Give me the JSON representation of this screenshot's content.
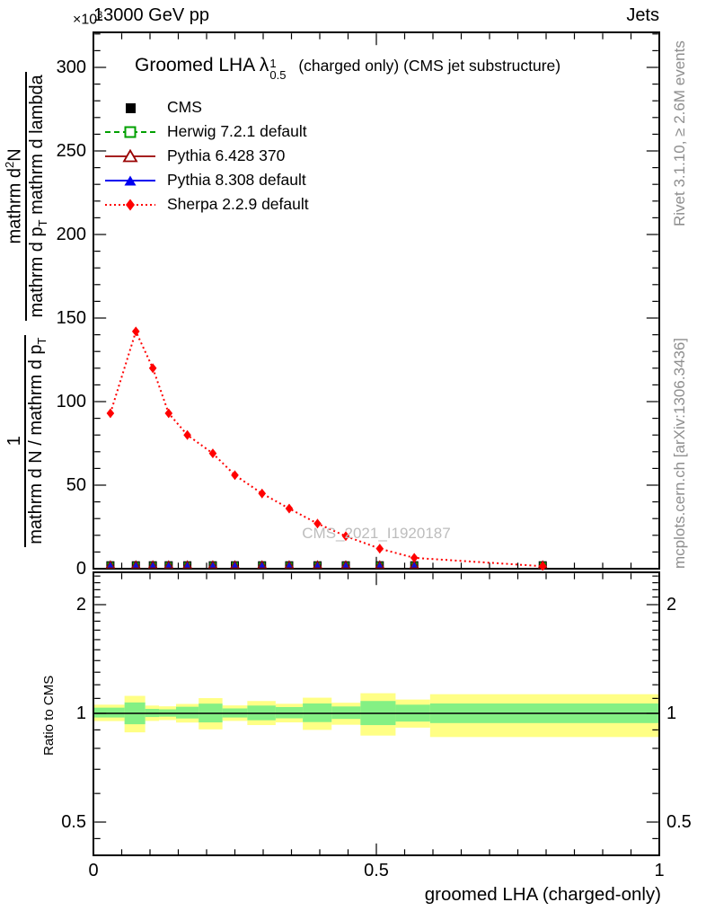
{
  "header": {
    "left": "13000 GeV pp",
    "right": "Jets",
    "scale_prefix": "×10",
    "scale_exp": "3"
  },
  "title": {
    "main": "Groomed LHA",
    "lambda": "λ",
    "sup": "1",
    "sub": "0.5",
    "suffix": "(charged only) (CMS jet substructure)"
  },
  "legend": {
    "items": [
      {
        "label": "CMS",
        "marker": "black-filled-square",
        "color": "#000000"
      },
      {
        "label": "Herwig 7.2.1 default",
        "marker": "green-open-square-dashed-line",
        "color": "#00a000"
      },
      {
        "label": "Pythia 6.428 370",
        "marker": "maroon-open-triangle-solid-line",
        "color": "#990000"
      },
      {
        "label": "Pythia 8.308 default",
        "marker": "blue-filled-triangle-solid-line",
        "color": "#0000f0"
      },
      {
        "label": "Sherpa 2.2.9 default",
        "marker": "red-filled-diamond-dotted-line",
        "color": "#ff0000"
      }
    ]
  },
  "watermark": "CMS_2021_I1920187",
  "sidebar_right": {
    "top": "Rivet 3.1.10, ≥ 2.6M events",
    "bottom": "mcplots.cern.ch [arXiv:1306.3436]"
  },
  "y_axis_label": {
    "frac1_num": "1",
    "frac1_den_prefix": "mathrm d N / mathrm d p",
    "frac1_den_sub": "T",
    "frac2_num_prefix": "mathrm d",
    "frac2_num_sup": "2",
    "frac2_num_suffix": "N",
    "frac2_den_prefix": "mathrm d p",
    "frac2_den_sub": "T",
    "frac2_den_suffix": " mathrm d lambda"
  },
  "ratio_axis_label": "Ratio to CMS",
  "x_axis_label": "groomed LHA (charged-only)",
  "chart_data": {
    "type": "line",
    "title": "Groomed LHA lambda^1_0.5 (charged only) (CMS jet substructure)",
    "xlabel": "groomed LHA (charged-only)",
    "ylabel": "1/(dN/dp_T) d^2N/(dp_T dlambda)",
    "y_scale_note": "×10³",
    "xlim": [
      0,
      1
    ],
    "ylim": [
      0,
      321
    ],
    "x_ticks": [
      0,
      0.5,
      1
    ],
    "x_tick_labels": [
      "0",
      "0.5",
      "1"
    ],
    "x_minor_step": 0.05,
    "y_ticks": [
      0,
      50,
      100,
      150,
      200,
      250,
      300
    ],
    "y_minor_step": 10,
    "grid": false,
    "legend_position": "top-left",
    "bin_centers": [
      0.03,
      0.075,
      0.105,
      0.133,
      0.166,
      0.211,
      0.25,
      0.298,
      0.346,
      0.396,
      0.446,
      0.506,
      0.567,
      0.794
    ],
    "series": [
      {
        "name": "CMS",
        "color": "#000000",
        "marker": "filled-square",
        "values": [
          2,
          2,
          2,
          2,
          2,
          2,
          2,
          2,
          2,
          2,
          2,
          2,
          2,
          1.5
        ]
      },
      {
        "name": "Herwig 7.2.1 default",
        "color": "#00a000",
        "marker": "open-square",
        "line": "dashed",
        "values": [
          2,
          2,
          2,
          2,
          2,
          2,
          2,
          2,
          2,
          2,
          2,
          2,
          2,
          1.5
        ]
      },
      {
        "name": "Pythia 6.428 370",
        "color": "#990000",
        "marker": "open-triangle",
        "line": "solid",
        "values": [
          2,
          2,
          2,
          2,
          2,
          2,
          2,
          2,
          2,
          2,
          2,
          2,
          2,
          1.5
        ]
      },
      {
        "name": "Pythia 8.308 default",
        "color": "#0000f0",
        "marker": "filled-triangle",
        "line": "solid",
        "values": [
          2,
          2,
          2,
          2,
          2,
          2,
          2,
          2,
          2,
          2,
          2,
          2,
          2,
          1.5
        ]
      },
      {
        "name": "Sherpa 2.2.9 default",
        "color": "#ff0000",
        "marker": "filled-diamond",
        "line": "dotted",
        "values": [
          93,
          142,
          120,
          93,
          80,
          69,
          56,
          45,
          36,
          27,
          19.5,
          12,
          6.5,
          1.5
        ]
      }
    ],
    "ratio": {
      "label": "Ratio to CMS",
      "scale": "log",
      "ylim": [
        0.4,
        2.46
      ],
      "ticks": [
        2,
        1,
        0.5
      ],
      "tick_labels": [
        "2",
        "1",
        "0.5"
      ],
      "minor_ticks": [
        0.45,
        0.6,
        0.7,
        0.8,
        0.9,
        1.1,
        1.2,
        1.3,
        1.4,
        1.5,
        1.6,
        1.7,
        1.8,
        1.9,
        2.1,
        2.2,
        2.3,
        2.4
      ],
      "reference_line": 1,
      "band_colors": {
        "yellow": "#ffff85",
        "green": "#84f084"
      },
      "bands": [
        {
          "x0": 0.0,
          "x1": 0.055,
          "yellow": [
            0.952,
            1.057
          ],
          "green": [
            0.974,
            1.037
          ]
        },
        {
          "x0": 0.055,
          "x1": 0.0915,
          "yellow": [
            0.886,
            1.118
          ],
          "green": [
            0.933,
            1.072
          ]
        },
        {
          "x0": 0.0915,
          "x1": 0.116,
          "yellow": [
            0.953,
            1.051
          ],
          "green": [
            0.977,
            1.029
          ]
        },
        {
          "x0": 0.116,
          "x1": 0.146,
          "yellow": [
            0.958,
            1.046
          ],
          "green": [
            0.979,
            1.026
          ]
        },
        {
          "x0": 0.146,
          "x1": 0.186,
          "yellow": [
            0.943,
            1.062
          ],
          "green": [
            0.968,
            1.043
          ]
        },
        {
          "x0": 0.186,
          "x1": 0.228,
          "yellow": [
            0.903,
            1.102
          ],
          "green": [
            0.944,
            1.064
          ]
        },
        {
          "x0": 0.228,
          "x1": 0.272,
          "yellow": [
            0.953,
            1.052
          ],
          "green": [
            0.974,
            1.032
          ]
        },
        {
          "x0": 0.272,
          "x1": 0.322,
          "yellow": [
            0.928,
            1.082
          ],
          "green": [
            0.957,
            1.051
          ]
        },
        {
          "x0": 0.322,
          "x1": 0.37,
          "yellow": [
            0.944,
            1.063
          ],
          "green": [
            0.969,
            1.041
          ]
        },
        {
          "x0": 0.37,
          "x1": 0.421,
          "yellow": [
            0.9,
            1.105
          ],
          "green": [
            0.946,
            1.065
          ]
        },
        {
          "x0": 0.421,
          "x1": 0.472,
          "yellow": [
            0.93,
            1.07
          ],
          "green": [
            0.965,
            1.045
          ]
        },
        {
          "x0": 0.472,
          "x1": 0.534,
          "yellow": [
            0.868,
            1.137
          ],
          "green": [
            0.928,
            1.082
          ]
        },
        {
          "x0": 0.534,
          "x1": 0.595,
          "yellow": [
            0.913,
            1.092
          ],
          "green": [
            0.949,
            1.057
          ]
        },
        {
          "x0": 0.595,
          "x1": 1.0,
          "yellow": [
            0.86,
            1.13
          ],
          "green": [
            0.94,
            1.065
          ]
        }
      ]
    }
  }
}
